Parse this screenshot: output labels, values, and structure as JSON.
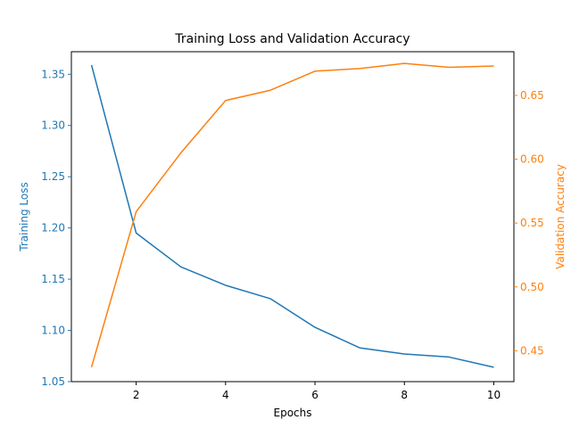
{
  "chart_data": {
    "type": "line",
    "title": "Training Loss and Validation Accuracy",
    "xlabel": "Epochs",
    "ylabel_left": "Training Loss",
    "ylabel_right": "Validation Accuracy",
    "x": [
      1,
      2,
      3,
      4,
      5,
      6,
      7,
      8,
      9,
      10
    ],
    "xlim": [
      0.55,
      10.45
    ],
    "xticks": [
      2,
      4,
      6,
      8,
      10
    ],
    "ylim_left": [
      1.05,
      1.372
    ],
    "yticks_left": [
      1.05,
      1.1,
      1.15,
      1.2,
      1.25,
      1.3,
      1.35
    ],
    "ylim_right": [
      0.4258,
      0.6842
    ],
    "yticks_right": [
      0.45,
      0.5,
      0.55,
      0.6,
      0.65
    ],
    "grid": false,
    "series": [
      {
        "name": "Training Loss",
        "axis": "left",
        "color": "#1f77b4",
        "values": [
          1.359,
          1.195,
          1.162,
          1.144,
          1.131,
          1.103,
          1.083,
          1.077,
          1.074,
          1.064
        ]
      },
      {
        "name": "Validation Accuracy",
        "axis": "right",
        "color": "#ff7f0e",
        "values": [
          0.437,
          0.559,
          0.605,
          0.646,
          0.654,
          0.669,
          0.671,
          0.675,
          0.672,
          0.673
        ]
      }
    ]
  }
}
